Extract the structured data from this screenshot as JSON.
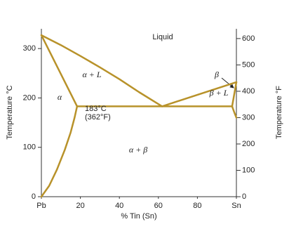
{
  "chart_data": {
    "type": "line",
    "xlabel": "% Tin (Sn)",
    "ylabel": "Temperature °C",
    "y2label": "Temperature °F",
    "xlim": [
      0,
      100
    ],
    "ylim": [
      0,
      340
    ],
    "y2lim": [
      0,
      637
    ],
    "xticks": [
      {
        "value": 0,
        "label": "Pb"
      },
      20,
      40,
      60,
      80,
      {
        "value": 100,
        "label": "Sn"
      }
    ],
    "yticks": [
      0,
      100,
      200,
      300
    ],
    "y2ticks": [
      0,
      100,
      200,
      300,
      400,
      500,
      600
    ],
    "color": "#b8922a",
    "series": [
      {
        "x": [
          0,
          10,
          20,
          30,
          40,
          50,
          61.9
        ],
        "values": [
          327,
          307,
          285,
          262,
          238,
          212,
          183
        ]
      },
      {
        "x": [
          61.9,
          100
        ],
        "values": [
          183,
          232
        ]
      },
      {
        "x": [
          0,
          18.3
        ],
        "values": [
          327,
          183
        ]
      },
      {
        "x": [
          18.3,
          17,
          15,
          12,
          8,
          4,
          0
        ],
        "values": [
          183,
          160,
          130,
          95,
          55,
          22,
          0
        ]
      },
      {
        "x": [
          18.3,
          97.8
        ],
        "values": [
          183,
          183
        ]
      },
      {
        "x": [
          97.8,
          100
        ],
        "values": [
          183,
          232
        ]
      },
      {
        "x": [
          97.8,
          99,
          100
        ],
        "values": [
          183,
          170,
          160
        ]
      }
    ],
    "annotations": [
      "Liquid",
      "α + L",
      "α",
      "183°C",
      "(362°F)",
      "α + β",
      "β",
      "β + L"
    ]
  }
}
